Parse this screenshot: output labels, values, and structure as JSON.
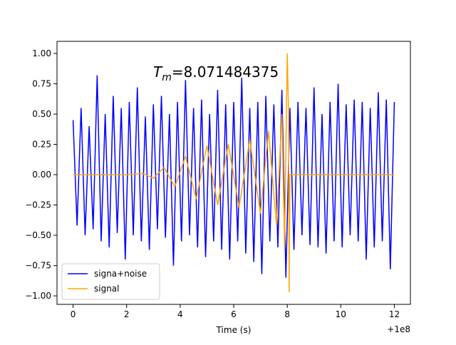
{
  "chart_data": {
    "type": "line",
    "annotation": {
      "symbol": "T",
      "subscript": "m",
      "text": "=8.071484375"
    },
    "xlabel": "Time (s)",
    "offset_text": "+1e8",
    "xlim": [
      -0.6,
      12.6
    ],
    "xticks": [
      0,
      2,
      4,
      6,
      8,
      10,
      12
    ],
    "ylim": [
      -1.07,
      1.1
    ],
    "yticks": [
      {
        "value": -1,
        "label": "−1.00"
      },
      {
        "value": -0.75,
        "label": "−0.75"
      },
      {
        "value": -0.5,
        "label": "−0.50"
      },
      {
        "value": -0.25,
        "label": "−0.25"
      },
      {
        "value": 0,
        "label": "0.00"
      },
      {
        "value": 0.25,
        "label": "0.25"
      },
      {
        "value": 0.5,
        "label": "0.50"
      },
      {
        "value": 0.75,
        "label": "0.75"
      },
      {
        "value": 1,
        "label": "1.00"
      }
    ],
    "legend": "lower left",
    "series": [
      {
        "name": "signa+noise",
        "color": "#0000ff",
        "x": [
          0,
          0.15,
          0.3,
          0.45,
          0.6,
          0.75,
          0.9,
          1.05,
          1.2,
          1.35,
          1.5,
          1.65,
          1.8,
          1.95,
          2.1,
          2.25,
          2.4,
          2.55,
          2.7,
          2.85,
          3,
          3.15,
          3.3,
          3.45,
          3.6,
          3.75,
          3.9,
          4.05,
          4.2,
          4.35,
          4.5,
          4.65,
          4.8,
          4.95,
          5.1,
          5.25,
          5.4,
          5.55,
          5.7,
          5.85,
          6,
          6.15,
          6.3,
          6.45,
          6.6,
          6.75,
          6.9,
          7.05,
          7.2,
          7.35,
          7.5,
          7.65,
          7.8,
          7.95,
          8.1,
          8.25,
          8.4,
          8.55,
          8.7,
          8.85,
          9,
          9.15,
          9.3,
          9.45,
          9.6,
          9.75,
          9.9,
          10.05,
          10.2,
          10.35,
          10.5,
          10.65,
          10.8,
          10.95,
          11.1,
          11.25,
          11.4,
          11.55,
          11.7,
          11.85,
          12
        ],
        "values": [
          0.45,
          -0.42,
          0.55,
          -0.5,
          0.4,
          -0.45,
          0.82,
          -0.55,
          0.5,
          -0.6,
          0.65,
          -0.48,
          0.55,
          -0.7,
          0.6,
          -0.5,
          0.72,
          -0.55,
          0.48,
          -0.62,
          0.58,
          -0.45,
          0.65,
          -0.52,
          0.5,
          -0.75,
          0.6,
          -0.55,
          0.78,
          -0.5,
          0.55,
          -0.6,
          0.62,
          -0.68,
          0.5,
          -0.55,
          0.7,
          -0.62,
          0.58,
          -0.7,
          0.6,
          -0.55,
          0.8,
          -0.65,
          0.55,
          -0.72,
          0.6,
          -0.82,
          0.65,
          -0.55,
          0.58,
          -0.6,
          0.7,
          -0.85,
          0.55,
          -0.62,
          0.6,
          -0.5,
          0.55,
          -0.58,
          0.72,
          -0.6,
          0.5,
          -0.65,
          0.6,
          -0.55,
          0.75,
          -0.6,
          0.58,
          -0.5,
          0.62,
          -0.55,
          0.6,
          -0.7,
          0.55,
          -0.6,
          0.68,
          -0.55,
          0.62,
          -0.78,
          0.6
        ]
      },
      {
        "name": "signal",
        "color": "#ffa500",
        "x": [
          0,
          2,
          2.6,
          3.0,
          3.4,
          3.8,
          4.2,
          4.6,
          5.0,
          5.4,
          5.8,
          6.2,
          6.6,
          7.0,
          7.3,
          7.6,
          7.8,
          7.9,
          8.0,
          8.05,
          8.07,
          8.1,
          12
        ],
        "values": [
          0,
          0,
          0.01,
          -0.03,
          0.06,
          -0.1,
          0.15,
          -0.2,
          0.24,
          -0.25,
          0.25,
          -0.27,
          0.29,
          -0.32,
          0.36,
          -0.42,
          0.5,
          -0.6,
          1.0,
          0.5,
          -0.97,
          0,
          0
        ]
      }
    ]
  }
}
